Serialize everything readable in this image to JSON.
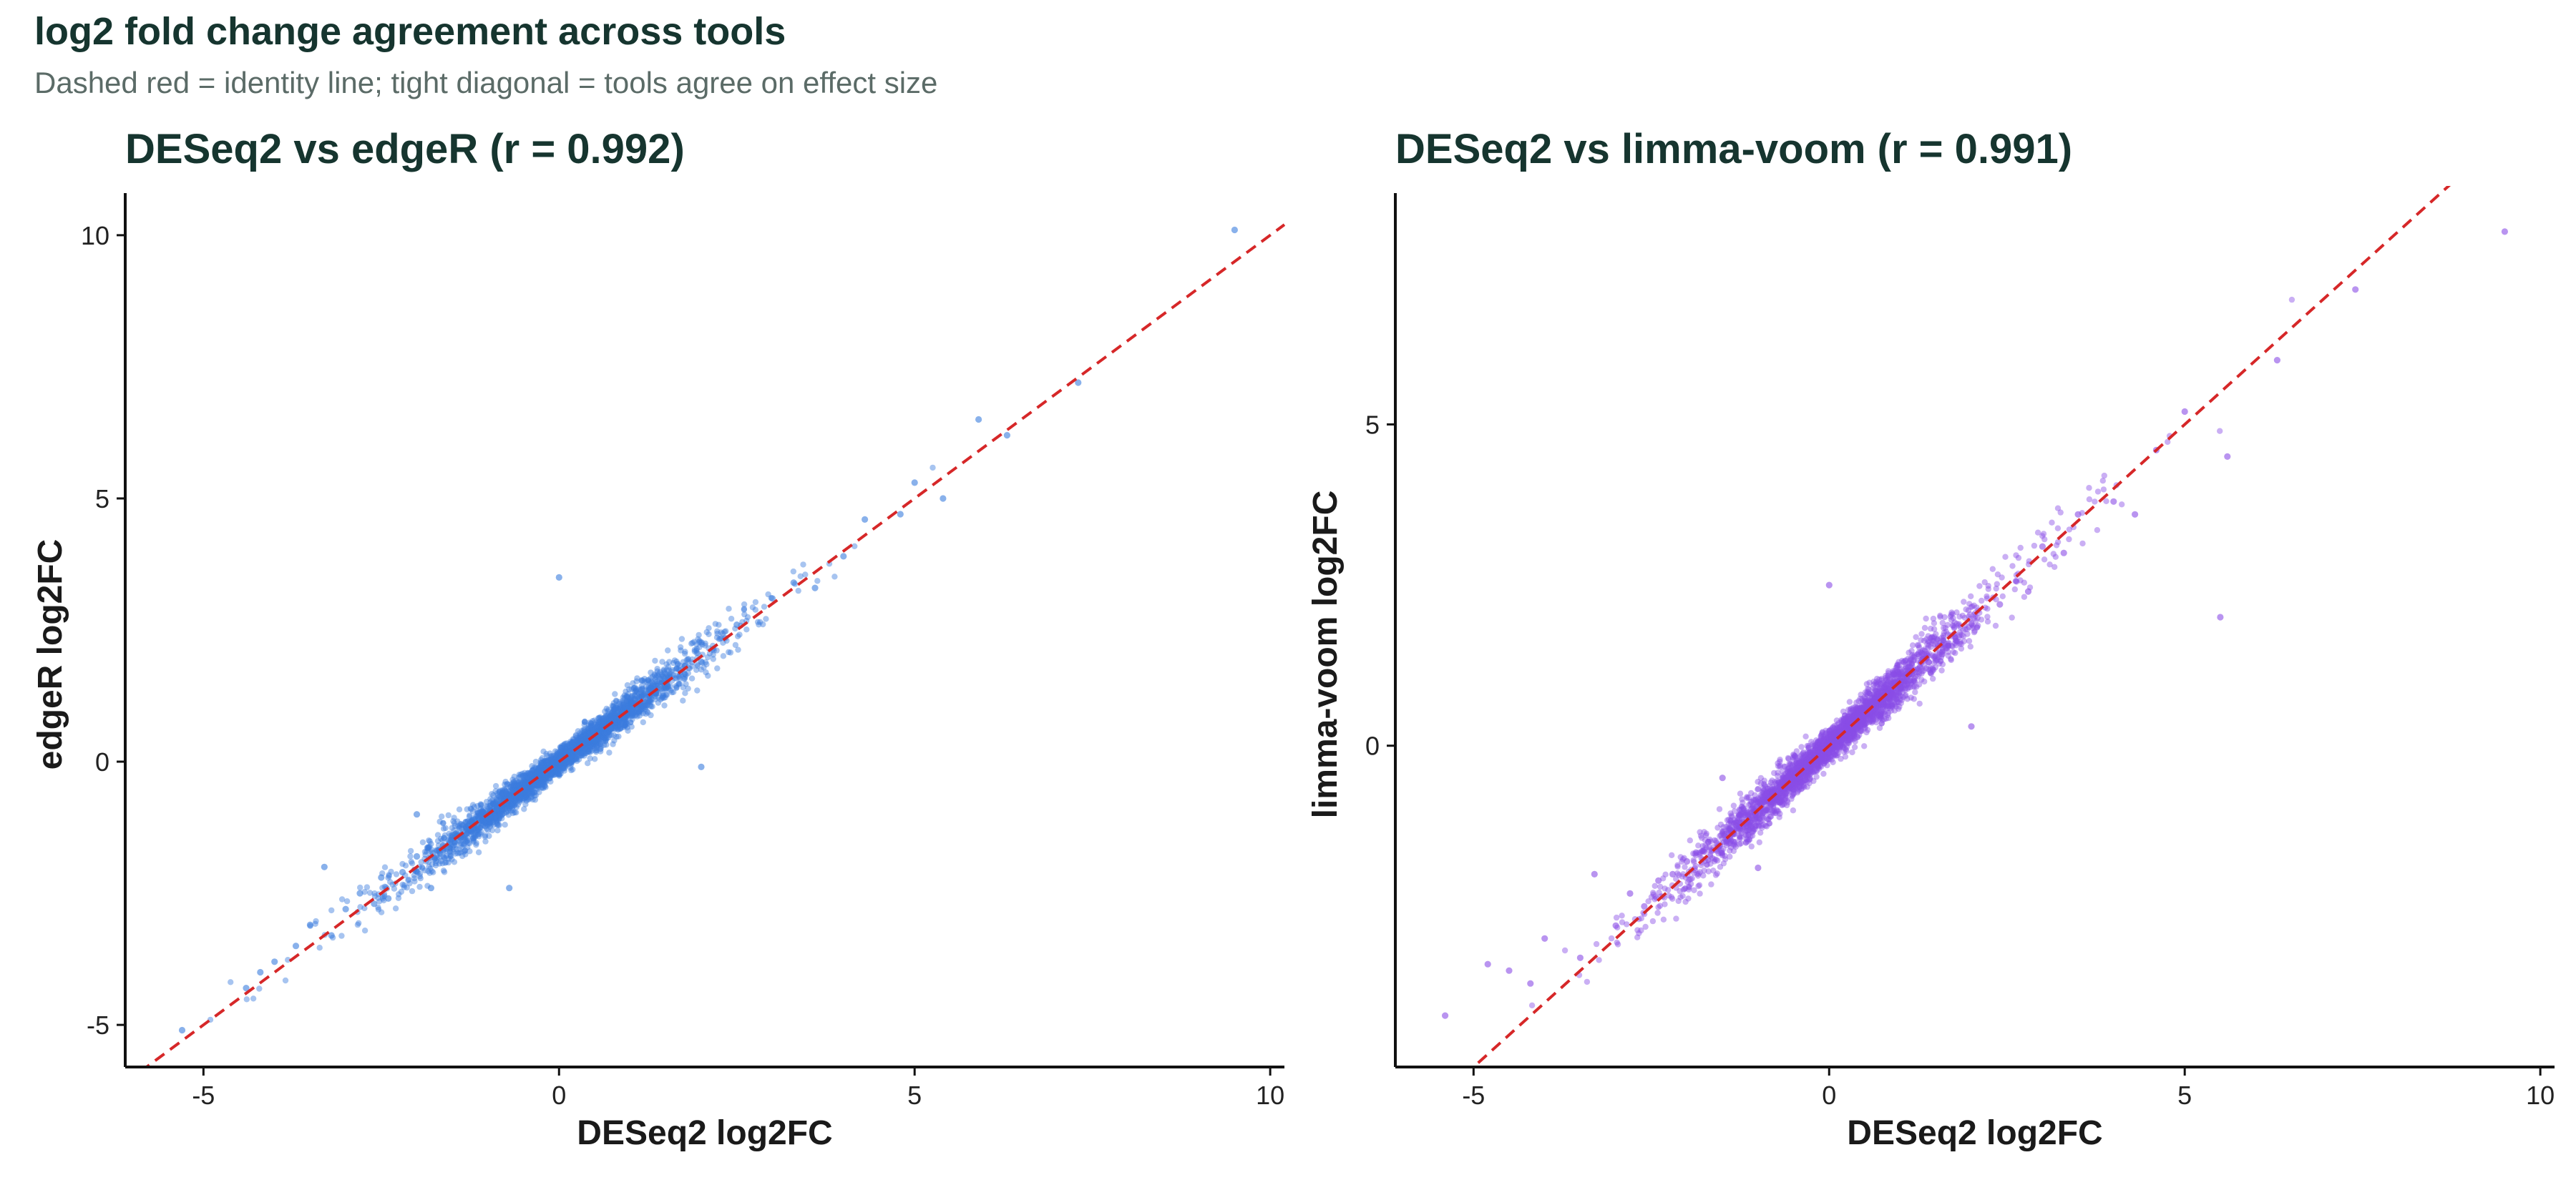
{
  "figure": {
    "title": "log2 fold change agreement across tools",
    "subtitle": "Dashed red = identity line; tight diagonal = tools agree on effect size"
  },
  "colors": {
    "title": "#16352f",
    "subtitle": "#5b6b67",
    "identity_line": "#d62728",
    "series_edger": "#3b7ddd",
    "series_limma": "#8a4de6"
  },
  "chart_data": [
    {
      "type": "scatter",
      "title": "DESeq2 vs edgeR (r = 0.992)",
      "xlabel": "DESeq2 log2FC",
      "ylabel": "edgeR log2FC",
      "xlim": [
        -6.1,
        10.2
      ],
      "ylim": [
        -5.8,
        10.8
      ],
      "x_ticks": [
        -5,
        0,
        5,
        10
      ],
      "x_tick_labels": [
        "-5",
        "0",
        "5",
        "10"
      ],
      "y_ticks": [
        -5,
        0,
        5,
        10
      ],
      "y_tick_labels": [
        "-5",
        "0",
        "5",
        "10"
      ],
      "grid": false,
      "identity_line": true,
      "correlation": 0.992,
      "point_color": "#3b7ddd",
      "point_count_estimate": 3000,
      "points": [
        [
          -5.3,
          -5.1
        ],
        [
          -4.4,
          -4.3
        ],
        [
          -4.2,
          -4.0
        ],
        [
          -4.0,
          -3.8
        ],
        [
          -3.7,
          -3.5
        ],
        [
          -3.5,
          -3.1
        ],
        [
          -3.3,
          -2.0
        ],
        [
          -3.2,
          -3.3
        ],
        [
          -3.0,
          -2.8
        ],
        [
          -2.8,
          -2.5
        ],
        [
          -2.6,
          -2.7
        ],
        [
          -2.5,
          -2.2
        ],
        [
          -2.4,
          -2.6
        ],
        [
          -2.2,
          -2.1
        ],
        [
          -2.0,
          -1.8
        ],
        [
          -2.0,
          -1.0
        ],
        [
          -1.8,
          -2.4
        ],
        [
          -1.5,
          -1.4
        ],
        [
          -1.2,
          -1.1
        ],
        [
          -0.7,
          -2.4
        ],
        [
          -0.3,
          -0.2
        ],
        [
          0.0,
          3.5
        ],
        [
          0.5,
          0.4
        ],
        [
          1.0,
          1.1
        ],
        [
          1.5,
          1.4
        ],
        [
          2.0,
          -0.1
        ],
        [
          2.0,
          1.9
        ],
        [
          2.5,
          2.6
        ],
        [
          3.0,
          3.1
        ],
        [
          3.3,
          3.4
        ],
        [
          3.6,
          3.3
        ],
        [
          4.0,
          3.9
        ],
        [
          4.3,
          4.6
        ],
        [
          4.8,
          4.7
        ],
        [
          5.0,
          5.3
        ],
        [
          5.4,
          5.0
        ],
        [
          5.9,
          6.5
        ],
        [
          6.3,
          6.2
        ],
        [
          7.3,
          7.2
        ],
        [
          9.5,
          10.1
        ]
      ],
      "extra_points_note": ""
    },
    {
      "type": "scatter",
      "title": "DESeq2 vs limma-voom (r = 0.991)",
      "xlabel": "DESeq2 log2FC",
      "ylabel": "limma-voom log2FC",
      "xlim": [
        -6.1,
        10.2
      ],
      "ylim": [
        -5.0,
        8.6
      ],
      "x_ticks": [
        -5,
        0,
        5,
        10
      ],
      "x_tick_labels": [
        "-5",
        "0",
        "5",
        "10"
      ],
      "y_ticks": [
        0,
        5
      ],
      "y_tick_labels": [
        "0",
        "5"
      ],
      "grid": false,
      "identity_line": true,
      "correlation": 0.991,
      "point_color": "#8a4de6",
      "point_count_estimate": 3000,
      "points": [
        [
          -5.4,
          -4.2
        ],
        [
          -4.8,
          -3.4
        ],
        [
          -4.5,
          -3.5
        ],
        [
          -4.2,
          -3.7
        ],
        [
          -4.0,
          -3.0
        ],
        [
          -3.5,
          -3.3
        ],
        [
          -3.3,
          -2.0
        ],
        [
          -3.0,
          -2.8
        ],
        [
          -2.8,
          -2.3
        ],
        [
          -2.6,
          -2.5
        ],
        [
          -2.4,
          -2.1
        ],
        [
          -2.2,
          -2.0
        ],
        [
          -2.0,
          -1.8
        ],
        [
          -1.7,
          -1.5
        ],
        [
          -1.5,
          -0.5
        ],
        [
          -1.3,
          -1.2
        ],
        [
          -1.0,
          -1.9
        ],
        [
          -0.6,
          -0.5
        ],
        [
          0.0,
          2.5
        ],
        [
          0.4,
          0.3
        ],
        [
          0.9,
          0.8
        ],
        [
          1.4,
          1.3
        ],
        [
          2.0,
          0.3
        ],
        [
          2.0,
          1.9
        ],
        [
          2.4,
          2.2
        ],
        [
          2.8,
          2.4
        ],
        [
          3.0,
          3.1
        ],
        [
          3.3,
          3.0
        ],
        [
          3.5,
          3.6
        ],
        [
          4.0,
          3.8
        ],
        [
          4.3,
          3.6
        ],
        [
          4.6,
          4.6
        ],
        [
          5.0,
          5.2
        ],
        [
          5.6,
          4.5
        ],
        [
          5.5,
          2.0
        ],
        [
          6.3,
          6.0
        ],
        [
          7.4,
          7.1
        ],
        [
          9.5,
          8.0
        ]
      ],
      "extra_points_note": ""
    }
  ]
}
